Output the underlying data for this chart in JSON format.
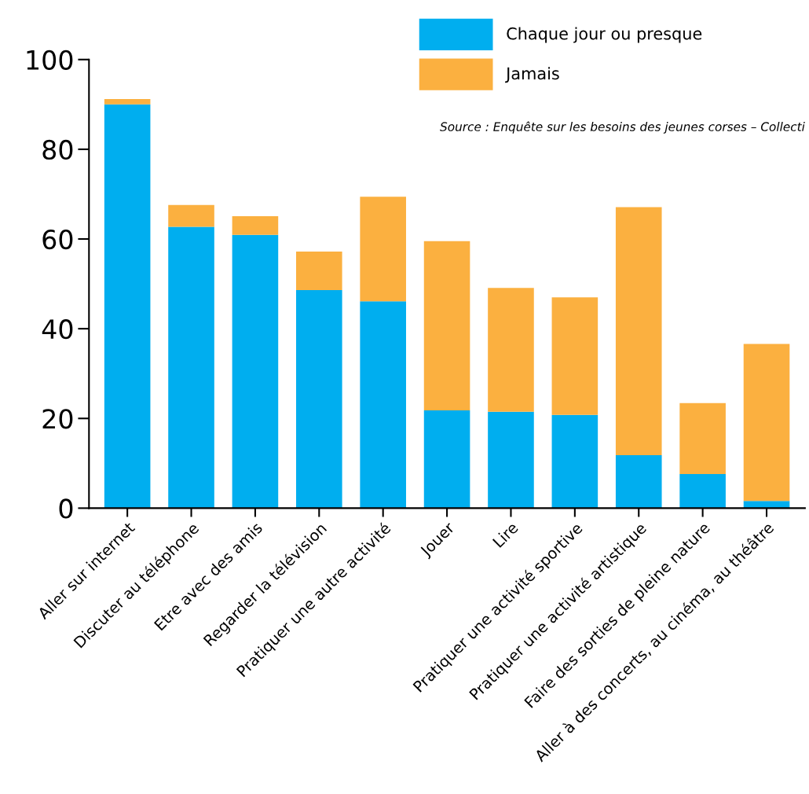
{
  "chart_data": {
    "type": "bar",
    "stacked": true,
    "categories": [
      "Aller sur internet",
      "Discuter au téléphone",
      "Etre avec des amis",
      "Regarder la télévision",
      "Pratiquer une autre activité",
      "Jouer",
      "Lire",
      "Pratiquer une activité sportive",
      "Pratiquer une activité artistique",
      "Faire des sorties de pleine nature",
      "Aller à des concerts, au cinéma, au théâtre"
    ],
    "series": [
      {
        "name": "Chaque jour ou presque",
        "color": "#00aeef",
        "values": [
          90.0,
          62.7,
          60.9,
          48.6,
          46.1,
          21.8,
          21.5,
          20.8,
          11.8,
          7.6,
          1.6
        ]
      },
      {
        "name": "Jamais",
        "color": "#fbb040",
        "values": [
          1.2,
          4.9,
          4.2,
          8.6,
          23.3,
          37.7,
          27.6,
          26.2,
          55.3,
          15.8,
          35.0
        ]
      }
    ],
    "ylim": [
      0,
      100
    ],
    "yticks": [
      0,
      20,
      40,
      60,
      80,
      100
    ],
    "grid": false,
    "legend": "top right",
    "annotations": [
      "Source : Enquête sur les besoins des jeunes corses – Collecti"
    ]
  }
}
